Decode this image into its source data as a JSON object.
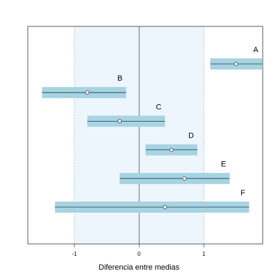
{
  "chart_data": {
    "type": "forest",
    "xlabel": "Diferencia entre medias",
    "categories": [
      "A",
      "B",
      "C",
      "D",
      "E",
      "F"
    ],
    "estimates": [
      1.5,
      -0.8,
      -0.3,
      0.5,
      0.7,
      0.4
    ],
    "lower": [
      1.1,
      -1.5,
      -0.8,
      0.1,
      -0.3,
      -1.3
    ],
    "upper": [
      1.9,
      -0.2,
      0.4,
      0.9,
      1.4,
      1.7
    ],
    "xlim": [
      -1.72,
      1.91
    ],
    "xticks": [
      -1,
      0,
      1
    ],
    "reference_band": [
      -1,
      1
    ],
    "color": "#a7d3e2",
    "band_color": "#eef6fd"
  }
}
